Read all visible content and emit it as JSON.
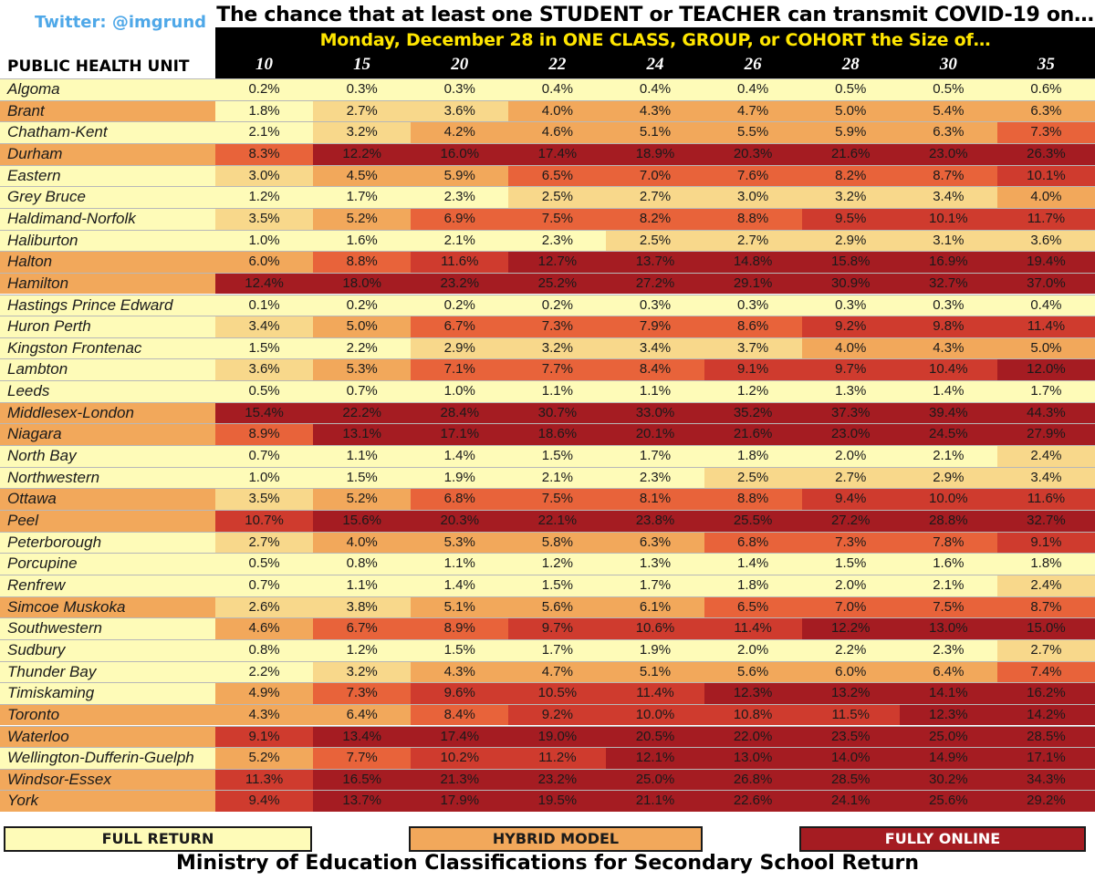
{
  "twitter_handle": "Twitter: @imgrund",
  "title": "The chance that at least one STUDENT or TEACHER can transmit COVID-19 on…",
  "subtitle": "Monday, December 28 in ONE CLASS, GROUP, or COHORT the Size of…",
  "row_header": "PUBLIC HEALTH UNIT",
  "legend": [
    {
      "label": "FULL RETURN",
      "color": "#fefbb8",
      "text_color": "#1a1a1a"
    },
    {
      "label": "HYBRID MODEL",
      "color": "#f2a85b",
      "text_color": "#1a1a1a"
    },
    {
      "label": "FULLY ONLINE",
      "color": "#a51c22",
      "text_color": "#ffffff"
    }
  ],
  "footer": "Ministry of Education Classifications for Secondary School Return",
  "colors": {
    "name_full": "#fefbb8",
    "name_hybrid": "#f2a85b",
    "name_online": "#a51c22",
    "scale": [
      "#fefbb8",
      "#f8d88b",
      "#f2a85b",
      "#e8633a",
      "#cf3b2e",
      "#a51c22"
    ]
  },
  "chart_data": {
    "type": "heatmap",
    "title": "The chance that at least one STUDENT or TEACHER can transmit COVID-19 on…",
    "subtitle": "Monday, December 28 in ONE CLASS, GROUP, or COHORT the Size of…",
    "row_label": "PUBLIC HEALTH UNIT",
    "columns": [
      "10",
      "15",
      "20",
      "22",
      "24",
      "26",
      "28",
      "30",
      "35"
    ],
    "rows": [
      {
        "name": "Algoma",
        "status": "full",
        "values": [
          "0.2%",
          "0.3%",
          "0.3%",
          "0.4%",
          "0.4%",
          "0.4%",
          "0.5%",
          "0.5%",
          "0.6%"
        ]
      },
      {
        "name": "Brant",
        "status": "hybrid",
        "values": [
          "1.8%",
          "2.7%",
          "3.6%",
          "4.0%",
          "4.3%",
          "4.7%",
          "5.0%",
          "5.4%",
          "6.3%"
        ]
      },
      {
        "name": "Chatham-Kent",
        "status": "full",
        "values": [
          "2.1%",
          "3.2%",
          "4.2%",
          "4.6%",
          "5.1%",
          "5.5%",
          "5.9%",
          "6.3%",
          "7.3%"
        ]
      },
      {
        "name": "Durham",
        "status": "hybrid",
        "values": [
          "8.3%",
          "12.2%",
          "16.0%",
          "17.4%",
          "18.9%",
          "20.3%",
          "21.6%",
          "23.0%",
          "26.3%"
        ]
      },
      {
        "name": "Eastern",
        "status": "full",
        "values": [
          "3.0%",
          "4.5%",
          "5.9%",
          "6.5%",
          "7.0%",
          "7.6%",
          "8.2%",
          "8.7%",
          "10.1%"
        ]
      },
      {
        "name": "Grey Bruce",
        "status": "full",
        "values": [
          "1.2%",
          "1.7%",
          "2.3%",
          "2.5%",
          "2.7%",
          "3.0%",
          "3.2%",
          "3.4%",
          "4.0%"
        ]
      },
      {
        "name": "Haldimand-Norfolk",
        "status": "full",
        "values": [
          "3.5%",
          "5.2%",
          "6.9%",
          "7.5%",
          "8.2%",
          "8.8%",
          "9.5%",
          "10.1%",
          "11.7%"
        ]
      },
      {
        "name": "Haliburton",
        "status": "full",
        "values": [
          "1.0%",
          "1.6%",
          "2.1%",
          "2.3%",
          "2.5%",
          "2.7%",
          "2.9%",
          "3.1%",
          "3.6%"
        ]
      },
      {
        "name": "Halton",
        "status": "hybrid",
        "values": [
          "6.0%",
          "8.8%",
          "11.6%",
          "12.7%",
          "13.7%",
          "14.8%",
          "15.8%",
          "16.9%",
          "19.4%"
        ]
      },
      {
        "name": "Hamilton",
        "status": "hybrid",
        "values": [
          "12.4%",
          "18.0%",
          "23.2%",
          "25.2%",
          "27.2%",
          "29.1%",
          "30.9%",
          "32.7%",
          "37.0%"
        ]
      },
      {
        "name": "Hastings Prince Edward",
        "status": "full",
        "values": [
          "0.1%",
          "0.2%",
          "0.2%",
          "0.2%",
          "0.3%",
          "0.3%",
          "0.3%",
          "0.3%",
          "0.4%"
        ]
      },
      {
        "name": "Huron Perth",
        "status": "full",
        "values": [
          "3.4%",
          "5.0%",
          "6.7%",
          "7.3%",
          "7.9%",
          "8.6%",
          "9.2%",
          "9.8%",
          "11.4%"
        ]
      },
      {
        "name": "Kingston Frontenac",
        "status": "full",
        "values": [
          "1.5%",
          "2.2%",
          "2.9%",
          "3.2%",
          "3.4%",
          "3.7%",
          "4.0%",
          "4.3%",
          "5.0%"
        ]
      },
      {
        "name": "Lambton",
        "status": "full",
        "values": [
          "3.6%",
          "5.3%",
          "7.1%",
          "7.7%",
          "8.4%",
          "9.1%",
          "9.7%",
          "10.4%",
          "12.0%"
        ]
      },
      {
        "name": "Leeds",
        "status": "full",
        "values": [
          "0.5%",
          "0.7%",
          "1.0%",
          "1.1%",
          "1.1%",
          "1.2%",
          "1.3%",
          "1.4%",
          "1.7%"
        ]
      },
      {
        "name": "Middlesex-London",
        "status": "hybrid",
        "values": [
          "15.4%",
          "22.2%",
          "28.4%",
          "30.7%",
          "33.0%",
          "35.2%",
          "37.3%",
          "39.4%",
          "44.3%"
        ]
      },
      {
        "name": "Niagara",
        "status": "hybrid",
        "values": [
          "8.9%",
          "13.1%",
          "17.1%",
          "18.6%",
          "20.1%",
          "21.6%",
          "23.0%",
          "24.5%",
          "27.9%"
        ]
      },
      {
        "name": "North Bay",
        "status": "full",
        "values": [
          "0.7%",
          "1.1%",
          "1.4%",
          "1.5%",
          "1.7%",
          "1.8%",
          "2.0%",
          "2.1%",
          "2.4%"
        ]
      },
      {
        "name": "Northwestern",
        "status": "full",
        "values": [
          "1.0%",
          "1.5%",
          "1.9%",
          "2.1%",
          "2.3%",
          "2.5%",
          "2.7%",
          "2.9%",
          "3.4%"
        ]
      },
      {
        "name": "Ottawa",
        "status": "hybrid",
        "values": [
          "3.5%",
          "5.2%",
          "6.8%",
          "7.5%",
          "8.1%",
          "8.8%",
          "9.4%",
          "10.0%",
          "11.6%"
        ]
      },
      {
        "name": "Peel",
        "status": "hybrid",
        "values": [
          "10.7%",
          "15.6%",
          "20.3%",
          "22.1%",
          "23.8%",
          "25.5%",
          "27.2%",
          "28.8%",
          "32.7%"
        ]
      },
      {
        "name": "Peterborough",
        "status": "full",
        "values": [
          "2.7%",
          "4.0%",
          "5.3%",
          "5.8%",
          "6.3%",
          "6.8%",
          "7.3%",
          "7.8%",
          "9.1%"
        ]
      },
      {
        "name": "Porcupine",
        "status": "full",
        "values": [
          "0.5%",
          "0.8%",
          "1.1%",
          "1.2%",
          "1.3%",
          "1.4%",
          "1.5%",
          "1.6%",
          "1.8%"
        ]
      },
      {
        "name": "Renfrew",
        "status": "full",
        "values": [
          "0.7%",
          "1.1%",
          "1.4%",
          "1.5%",
          "1.7%",
          "1.8%",
          "2.0%",
          "2.1%",
          "2.4%"
        ]
      },
      {
        "name": "Simcoe Muskoka",
        "status": "hybrid",
        "values": [
          "2.6%",
          "3.8%",
          "5.1%",
          "5.6%",
          "6.1%",
          "6.5%",
          "7.0%",
          "7.5%",
          "8.7%"
        ]
      },
      {
        "name": "Southwestern",
        "status": "full",
        "values": [
          "4.6%",
          "6.7%",
          "8.9%",
          "9.7%",
          "10.6%",
          "11.4%",
          "12.2%",
          "13.0%",
          "15.0%"
        ]
      },
      {
        "name": "Sudbury",
        "status": "full",
        "values": [
          "0.8%",
          "1.2%",
          "1.5%",
          "1.7%",
          "1.9%",
          "2.0%",
          "2.2%",
          "2.3%",
          "2.7%"
        ]
      },
      {
        "name": "Thunder Bay",
        "status": "full",
        "values": [
          "2.2%",
          "3.2%",
          "4.3%",
          "4.7%",
          "5.1%",
          "5.6%",
          "6.0%",
          "6.4%",
          "7.4%"
        ]
      },
      {
        "name": "Timiskaming",
        "status": "full",
        "values": [
          "4.9%",
          "7.3%",
          "9.6%",
          "10.5%",
          "11.4%",
          "12.3%",
          "13.2%",
          "14.1%",
          "16.2%"
        ]
      },
      {
        "name": "Toronto",
        "status": "hybrid",
        "values": [
          "4.3%",
          "6.4%",
          "8.4%",
          "9.2%",
          "10.0%",
          "10.8%",
          "11.5%",
          "12.3%",
          "14.2%"
        ]
      },
      {
        "name": "Waterloo",
        "status": "hybrid",
        "values": [
          "9.1%",
          "13.4%",
          "17.4%",
          "19.0%",
          "20.5%",
          "22.0%",
          "23.5%",
          "25.0%",
          "28.5%"
        ]
      },
      {
        "name": "Wellington-Dufferin-Guelph",
        "status": "full",
        "values": [
          "5.2%",
          "7.7%",
          "10.2%",
          "11.2%",
          "12.1%",
          "13.0%",
          "14.0%",
          "14.9%",
          "17.1%"
        ]
      },
      {
        "name": "Windsor-Essex",
        "status": "hybrid",
        "values": [
          "11.3%",
          "16.5%",
          "21.3%",
          "23.2%",
          "25.0%",
          "26.8%",
          "28.5%",
          "30.2%",
          "34.3%"
        ]
      },
      {
        "name": "York",
        "status": "hybrid",
        "values": [
          "9.4%",
          "13.7%",
          "17.9%",
          "19.5%",
          "21.1%",
          "22.6%",
          "24.1%",
          "25.6%",
          "29.2%"
        ]
      }
    ]
  }
}
